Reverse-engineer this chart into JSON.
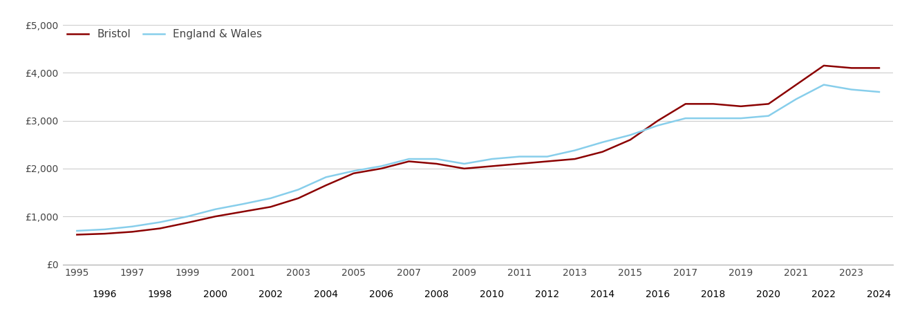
{
  "years": [
    1995,
    1996,
    1997,
    1998,
    1999,
    2000,
    2001,
    2002,
    2003,
    2004,
    2005,
    2006,
    2007,
    2008,
    2009,
    2010,
    2011,
    2012,
    2013,
    2014,
    2015,
    2016,
    2017,
    2018,
    2019,
    2020,
    2021,
    2022,
    2023,
    2024
  ],
  "bristol": [
    620,
    640,
    680,
    750,
    870,
    1000,
    1100,
    1200,
    1380,
    1650,
    1900,
    2000,
    2150,
    2100,
    2000,
    2050,
    2100,
    2150,
    2200,
    2350,
    2600,
    3000,
    3350,
    3350,
    3300,
    3350,
    3750,
    4150,
    4100,
    4100
  ],
  "england_wales": [
    700,
    730,
    790,
    880,
    1000,
    1150,
    1260,
    1380,
    1560,
    1820,
    1950,
    2050,
    2200,
    2200,
    2100,
    2200,
    2250,
    2250,
    2380,
    2550,
    2700,
    2900,
    3050,
    3050,
    3050,
    3100,
    3450,
    3750,
    3650,
    3600
  ],
  "bristol_color": "#8B0000",
  "england_wales_color": "#87CEEB",
  "line_width": 1.8,
  "ylim": [
    0,
    5000
  ],
  "yticks": [
    0,
    1000,
    2000,
    3000,
    4000,
    5000
  ],
  "ytick_labels": [
    "£0",
    "£1,000",
    "£2,000",
    "£3,000",
    "£4,000",
    "£5,000"
  ],
  "legend_bristol": "Bristol",
  "legend_ew": "England & Wales",
  "background_color": "#ffffff",
  "grid_color": "#cccccc",
  "tick_label_color": "#444444",
  "legend_fontsize": 11,
  "tick_fontsize": 10
}
